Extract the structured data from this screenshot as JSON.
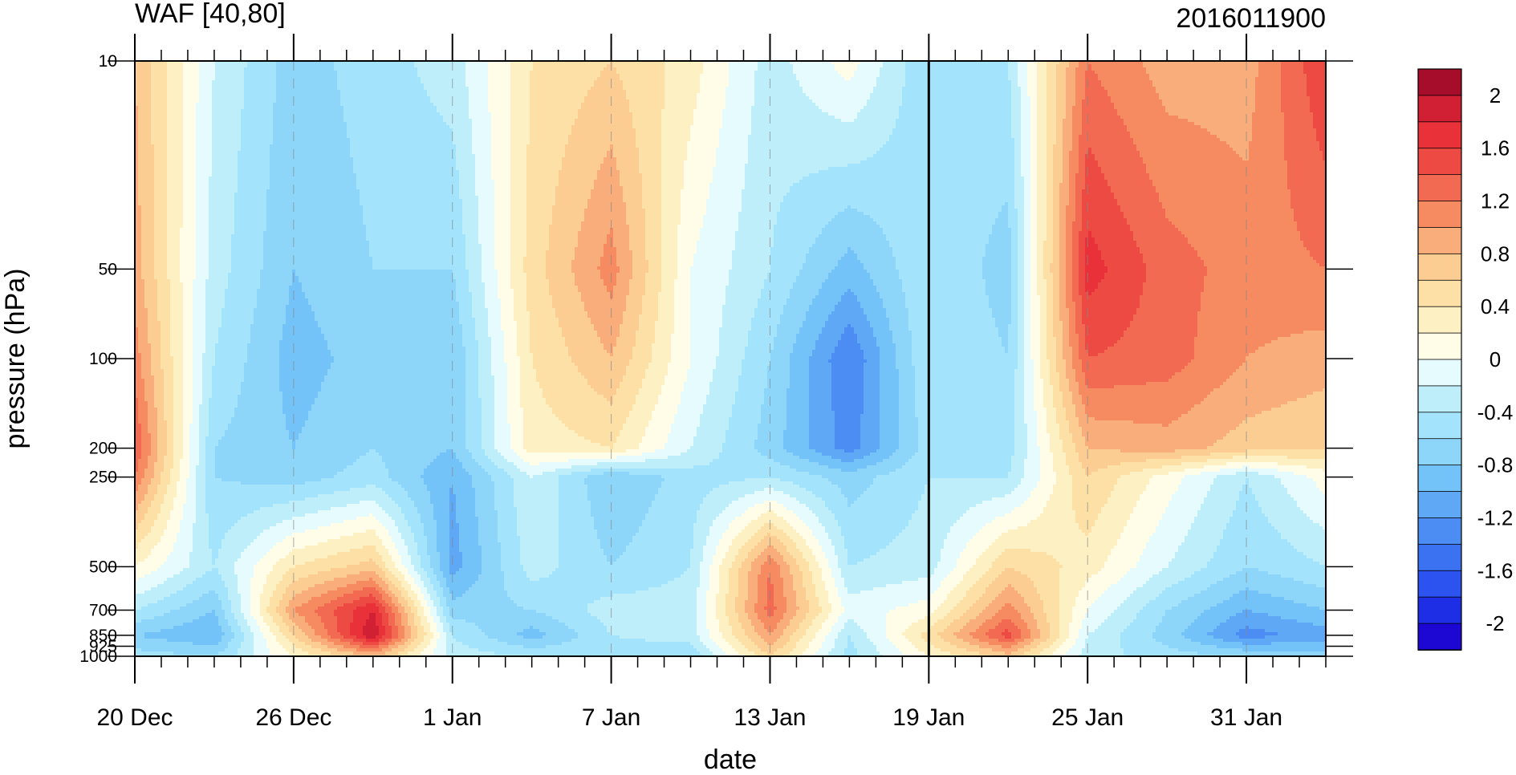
{
  "chart_data": {
    "type": "heatmap",
    "subtype": "filled-contour height-time section",
    "title": "WAF [40,80]",
    "subtitle_right": "2016011900",
    "xlabel": "date",
    "ylabel": "pressure (hPa)",
    "y_scale": "log",
    "y_reversed": true,
    "ylim": [
      1000,
      10
    ],
    "x_start": "2015-12-20",
    "x_end": "2016-02-03",
    "x_minor_tick_interval_days": 1,
    "marked_date": "2016-01-19",
    "x_tick_labels": [
      {
        "date": "2015-12-20",
        "label": "20 Dec"
      },
      {
        "date": "2015-12-26",
        "label": "26 Dec"
      },
      {
        "date": "2016-01-01",
        "label": "1 Jan"
      },
      {
        "date": "2016-01-07",
        "label": "7 Jan"
      },
      {
        "date": "2016-01-13",
        "label": "13 Jan"
      },
      {
        "date": "2016-01-19",
        "label": "19 Jan"
      },
      {
        "date": "2016-01-25",
        "label": "25 Jan"
      },
      {
        "date": "2016-01-31",
        "label": "31 Jan"
      }
    ],
    "y_tick_values": [
      10,
      50,
      100,
      200,
      250,
      500,
      700,
      850,
      925,
      1000
    ],
    "y_tick_labels": [
      "10",
      "50",
      "100",
      "200",
      "250",
      "500",
      "700",
      "850",
      "925",
      "1000"
    ],
    "colorbar": {
      "levels": [
        -2.2,
        -2,
        -1.8,
        -1.6,
        -1.4,
        -1.2,
        -1,
        -0.8,
        -0.6,
        -0.4,
        -0.2,
        0,
        0.2,
        0.4,
        0.6,
        0.8,
        1,
        1.2,
        1.4,
        1.6,
        1.8,
        2,
        2.2
      ],
      "colors": [
        "#1c07d3",
        "#1e2ee5",
        "#2c52ef",
        "#3a72f2",
        "#4c8df4",
        "#5ea8f6",
        "#74c3f8",
        "#8dd6fa",
        "#a3e3fb",
        "#bdeef9",
        "#e6fbfd",
        "#fffde7",
        "#fdf0c2",
        "#fce0a6",
        "#fbcd93",
        "#f9ad7a",
        "#f68a61",
        "#f26a52",
        "#ee4a44",
        "#e9313a",
        "#d11f34",
        "#a50d2a"
      ],
      "tick_labels": [
        "2",
        "1.6",
        "1.2",
        "0.8",
        "0.4",
        "0",
        "-0.4",
        "-0.8",
        "-1.2",
        "-1.6",
        "-2"
      ],
      "tick_values": [
        2,
        1.6,
        1.2,
        0.8,
        0.4,
        0,
        -0.4,
        -0.8,
        -1.2,
        -1.6,
        -2
      ]
    },
    "grid_dates": [
      "2015-12-20",
      "2015-12-23",
      "2015-12-26",
      "2015-12-29",
      "2016-01-01",
      "2016-01-04",
      "2016-01-07",
      "2016-01-10",
      "2016-01-13",
      "2016-01-16",
      "2016-01-19",
      "2016-01-22",
      "2016-01-25",
      "2016-01-28",
      "2016-01-31",
      "2016-02-03"
    ],
    "grid_levels_hpa": [
      10,
      50,
      100,
      200,
      250,
      500,
      700,
      850,
      1000
    ],
    "values": [
      [
        0.8,
        -0.2,
        -0.7,
        -0.5,
        -0.3,
        0.4,
        0.6,
        0.3,
        -0.3,
        0.1,
        -0.6,
        -0.4,
        1.2,
        0.9,
        0.9,
        1.6
      ],
      [
        0.9,
        -0.3,
        -0.8,
        -0.6,
        -0.6,
        0.5,
        1.1,
        0.0,
        -0.4,
        -0.9,
        -0.4,
        -0.7,
        1.7,
        1.3,
        1.1,
        1.2
      ],
      [
        1.1,
        -0.4,
        -0.9,
        -0.7,
        -0.8,
        0.4,
        0.8,
        0.0,
        -0.6,
        -1.4,
        -0.4,
        -0.6,
        1.4,
        1.3,
        1.0,
        0.9
      ],
      [
        1.4,
        -0.6,
        -0.8,
        -0.6,
        -0.8,
        0.3,
        0.4,
        -0.2,
        -0.7,
        -1.3,
        -0.5,
        -0.5,
        0.8,
        0.9,
        0.7,
        0.6
      ],
      [
        1.2,
        -0.6,
        -0.7,
        -0.5,
        -1.0,
        -0.2,
        -0.8,
        -0.5,
        -0.4,
        -0.7,
        -0.4,
        -0.4,
        0.6,
        0.1,
        -0.4,
        0.1
      ],
      [
        0.2,
        -0.4,
        0.4,
        0.7,
        -1.1,
        -0.3,
        -0.6,
        -0.4,
        1.2,
        -0.4,
        -0.3,
        0.6,
        0.3,
        -0.2,
        -0.6,
        -0.4
      ],
      [
        -0.4,
        -0.8,
        1.0,
        1.8,
        -0.7,
        -0.6,
        -0.3,
        -0.3,
        1.3,
        -0.1,
        0.1,
        1.1,
        0.0,
        -0.6,
        -1.0,
        -0.8
      ],
      [
        -0.8,
        -1.0,
        0.6,
        2.0,
        -0.4,
        -0.9,
        -0.4,
        -0.3,
        1.0,
        -0.4,
        0.5,
        1.5,
        -0.2,
        -0.7,
        -1.3,
        -1.1
      ],
      [
        -0.5,
        -0.6,
        0.2,
        0.8,
        -0.3,
        -0.4,
        -0.5,
        -0.6,
        0.6,
        -0.5,
        0.2,
        0.7,
        -0.3,
        -0.5,
        -0.6,
        -0.7
      ]
    ]
  }
}
